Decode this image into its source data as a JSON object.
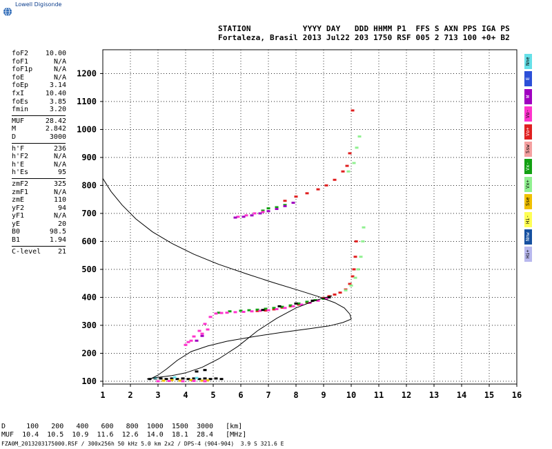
{
  "logo": {
    "text": "Lowell Digisonde"
  },
  "header": {
    "line1": "STATION           YYYY DAY   DDD HHMM P1  FFS S AXN PPS IGA PS",
    "line2": "Fortaleza, Brasil 2013 Jul22 203 1750 RSF 005 2 713 100 +0+ B2"
  },
  "params": [
    {
      "label": "foF2",
      "value": "10.00"
    },
    {
      "label": "foF1",
      "value": "N/A"
    },
    {
      "label": "foF1p",
      "value": "N/A"
    },
    {
      "label": "foE",
      "value": "N/A"
    },
    {
      "label": "foEp",
      "value": "3.14"
    },
    {
      "label": "fxI",
      "value": "10.40"
    },
    {
      "label": "foEs",
      "value": "3.85"
    },
    {
      "label": "fmin",
      "value": "3.20"
    },
    {
      "sep": true
    },
    {
      "label": "MUF",
      "value": "28.42"
    },
    {
      "label": "M",
      "value": "2.842"
    },
    {
      "label": "D",
      "value": "3000"
    },
    {
      "sep": true
    },
    {
      "label": "h'F",
      "value": "236"
    },
    {
      "label": "h'F2",
      "value": "N/A"
    },
    {
      "label": "h'E",
      "value": "N/A"
    },
    {
      "label": "h'Es",
      "value": "95"
    },
    {
      "sep": true
    },
    {
      "label": "zmF2",
      "value": "325"
    },
    {
      "label": "zmF1",
      "value": "N/A"
    },
    {
      "label": "zmE",
      "value": "110"
    },
    {
      "label": "yF2",
      "value": "94"
    },
    {
      "label": "yF1",
      "value": "N/A"
    },
    {
      "label": "yE",
      "value": "20"
    },
    {
      "label": "B0",
      "value": "98.5"
    },
    {
      "label": "B1",
      "value": "1.94"
    },
    {
      "sep": true
    },
    {
      "label": "C-level",
      "value": "21"
    }
  ],
  "legend": [
    {
      "label": "Nne",
      "color": "#66e0e8"
    },
    {
      "label": "E",
      "color": "#2c4fd8"
    },
    {
      "label": "W",
      "color": "#a000c0"
    },
    {
      "label": "Vo-",
      "color": "#ff33cc"
    },
    {
      "label": "Vo+",
      "color": "#e02020"
    },
    {
      "label": "Ssw",
      "color": "#f4a0a0"
    },
    {
      "label": "Vx-",
      "color": "#12a012"
    },
    {
      "label": "Vx+",
      "color": "#90f090"
    },
    {
      "label": "Sse",
      "color": "#f0c000"
    },
    {
      "label": "Hi-",
      "color": "#ffff55"
    },
    {
      "label": "Nnw",
      "color": "#1650a0"
    },
    {
      "label": "Hi+",
      "color": "#b8b8ee"
    }
  ],
  "footer": {
    "d_row": "D     100   200   400   600   800  1000  1500  3000   [km]",
    "muf_row": "MUF  10.4  10.5  10.9  11.6  12.6  14.0  18.1  28.4   [MHz]",
    "file_line": "FZA0M_2013203175000.RSF / 300x256h 50 kHz 5.0 km 2x2 / DPS-4 (904-904)  3.9 S 321.6 E"
  },
  "chart_data": {
    "type": "scatter",
    "xlabel": "",
    "ylabel": "",
    "xlim": [
      1,
      16
    ],
    "ylim": [
      90,
      1285
    ],
    "xticks": [
      1,
      2,
      3,
      4,
      5,
      6,
      7,
      8,
      9,
      10,
      11,
      12,
      13,
      14,
      15,
      16
    ],
    "yticks": [
      100,
      200,
      300,
      400,
      500,
      600,
      700,
      800,
      900,
      1000,
      1100,
      1200
    ],
    "grid": true,
    "series": [
      {
        "kind": "echo",
        "color": "#e02020",
        "points": [
          [
            6.6,
            351
          ],
          [
            6.9,
            353
          ],
          [
            7.2,
            357
          ],
          [
            7.5,
            363
          ],
          [
            7.8,
            368
          ],
          [
            8.1,
            374
          ],
          [
            8.4,
            382
          ],
          [
            8.7,
            390
          ],
          [
            9.0,
            398
          ],
          [
            9.2,
            404
          ],
          [
            9.4,
            410
          ],
          [
            9.6,
            417
          ],
          [
            9.8,
            428
          ],
          [
            9.95,
            448
          ],
          [
            10.05,
            475
          ],
          [
            10.1,
            500
          ],
          [
            10.15,
            545
          ],
          [
            10.18,
            600
          ],
          [
            7.6,
            745
          ],
          [
            8.0,
            760
          ],
          [
            8.4,
            772
          ],
          [
            8.8,
            786
          ],
          [
            9.1,
            800
          ],
          [
            9.4,
            820
          ],
          [
            9.7,
            850
          ],
          [
            9.85,
            870
          ],
          [
            9.95,
            915
          ],
          [
            10.05,
            1068
          ]
        ]
      },
      {
        "kind": "echo",
        "color": "#12a012",
        "points": [
          [
            5.2,
            345
          ],
          [
            5.6,
            350
          ],
          [
            6.0,
            352
          ],
          [
            6.3,
            354
          ],
          [
            6.6,
            356
          ],
          [
            6.9,
            359
          ],
          [
            7.2,
            362
          ],
          [
            7.5,
            366
          ],
          [
            7.8,
            371
          ],
          [
            8.1,
            378
          ],
          [
            8.4,
            384
          ],
          [
            8.7,
            390
          ],
          [
            9.0,
            395
          ],
          [
            6.8,
            710
          ],
          [
            7.0,
            718
          ],
          [
            7.3,
            722
          ],
          [
            7.6,
            730
          ]
        ]
      },
      {
        "kind": "echo",
        "color": "#ff33cc",
        "points": [
          [
            4.1,
            240
          ],
          [
            4.3,
            260
          ],
          [
            4.5,
            280
          ],
          [
            4.7,
            305
          ],
          [
            4.9,
            330
          ],
          [
            5.1,
            342
          ],
          [
            5.3,
            344
          ],
          [
            5.5,
            345
          ],
          [
            5.8,
            347
          ],
          [
            6.1,
            348
          ],
          [
            6.4,
            350
          ],
          [
            6.7,
            352
          ],
          [
            7.0,
            354
          ],
          [
            7.3,
            358
          ],
          [
            7.6,
            362
          ],
          [
            7.9,
            368
          ],
          [
            8.2,
            374
          ],
          [
            8.5,
            380
          ],
          [
            8.8,
            388
          ],
          [
            9.1,
            395
          ],
          [
            4.0,
            230
          ],
          [
            4.2,
            245
          ],
          [
            4.6,
            270
          ],
          [
            4.8,
            285
          ],
          [
            5.9,
            688
          ],
          [
            6.2,
            693
          ],
          [
            6.5,
            700
          ],
          [
            6.8,
            705
          ]
        ]
      },
      {
        "kind": "echo",
        "color": "#90f090",
        "points": [
          [
            9.8,
            425
          ],
          [
            10.0,
            442
          ],
          [
            10.15,
            470
          ],
          [
            10.25,
            500
          ],
          [
            10.35,
            545
          ],
          [
            10.42,
            600
          ],
          [
            10.45,
            650
          ],
          [
            9.9,
            850
          ],
          [
            10.1,
            880
          ],
          [
            10.2,
            935
          ],
          [
            10.3,
            975
          ]
        ]
      },
      {
        "kind": "echo",
        "color": "#a000c0",
        "points": [
          [
            5.8,
            685
          ],
          [
            6.1,
            688
          ],
          [
            6.4,
            693
          ],
          [
            6.7,
            700
          ],
          [
            7.0,
            708
          ],
          [
            7.3,
            716
          ],
          [
            7.6,
            726
          ],
          [
            7.9,
            738
          ],
          [
            4.4,
            245
          ],
          [
            4.6,
            262
          ]
        ]
      },
      {
        "kind": "echo",
        "color": "#000000",
        "points": [
          [
            2.7,
            108
          ],
          [
            2.9,
            110
          ],
          [
            3.1,
            110
          ],
          [
            3.3,
            108
          ],
          [
            3.5,
            110
          ],
          [
            3.7,
            108
          ],
          [
            3.9,
            110
          ],
          [
            4.1,
            108
          ],
          [
            4.3,
            110
          ],
          [
            4.5,
            108
          ],
          [
            4.7,
            110
          ],
          [
            4.9,
            108
          ],
          [
            5.1,
            110
          ],
          [
            5.3,
            108
          ],
          [
            6.8,
            355
          ],
          [
            7.4,
            368
          ],
          [
            8.0,
            378
          ],
          [
            8.6,
            388
          ],
          [
            9.2,
            400
          ],
          [
            4.4,
            135
          ],
          [
            4.7,
            140
          ]
        ]
      },
      {
        "kind": "echo",
        "color": "#f0c000",
        "points": [
          [
            3.2,
            102
          ],
          [
            3.5,
            104
          ],
          [
            3.8,
            102
          ],
          [
            4.2,
            104
          ],
          [
            4.6,
            102
          ],
          [
            4.8,
            103
          ]
        ]
      },
      {
        "kind": "echo",
        "color": "#ff33cc",
        "points": [
          [
            3.0,
            100
          ],
          [
            3.4,
            101
          ],
          [
            3.9,
            100
          ],
          [
            4.3,
            101
          ],
          [
            4.7,
            100
          ]
        ]
      },
      {
        "kind": "echo",
        "color": "#66e0e8",
        "points": [
          [
            2.9,
            112
          ],
          [
            3.6,
            114
          ],
          [
            4.4,
            112
          ]
        ]
      },
      {
        "kind": "line",
        "name": "",
        "color": "#000000",
        "points": [
          [
            1.0,
            825
          ],
          [
            1.3,
            778
          ],
          [
            1.7,
            730
          ],
          [
            2.2,
            680
          ],
          [
            2.8,
            634
          ],
          [
            3.5,
            593
          ],
          [
            4.3,
            554
          ],
          [
            5.2,
            518
          ],
          [
            6.2,
            484
          ],
          [
            7.2,
            452
          ],
          [
            8.1,
            425
          ],
          [
            8.8,
            403
          ],
          [
            9.4,
            381
          ],
          [
            9.75,
            362
          ],
          [
            9.95,
            340
          ],
          [
            10.0,
            322
          ],
          [
            9.7,
            310
          ],
          [
            9.2,
            298
          ],
          [
            8.5,
            288
          ],
          [
            7.5,
            275
          ],
          [
            6.5,
            260
          ],
          [
            5.5,
            243
          ],
          [
            4.8,
            226
          ],
          [
            4.2,
            206
          ],
          [
            3.7,
            175
          ],
          [
            3.3,
            143
          ],
          [
            3.0,
            122
          ],
          [
            2.7,
            107
          ]
        ]
      },
      {
        "kind": "line",
        "name": "",
        "color": "#000000",
        "points": [
          [
            2.6,
            108
          ],
          [
            3.0,
            114
          ],
          [
            3.5,
            120
          ],
          [
            4.0,
            130
          ],
          [
            4.6,
            150
          ],
          [
            5.2,
            180
          ],
          [
            5.9,
            225
          ],
          [
            6.6,
            280
          ],
          [
            7.3,
            325
          ],
          [
            8.0,
            362
          ],
          [
            8.6,
            385
          ],
          [
            9.0,
            398
          ],
          [
            9.3,
            405
          ]
        ]
      }
    ]
  }
}
